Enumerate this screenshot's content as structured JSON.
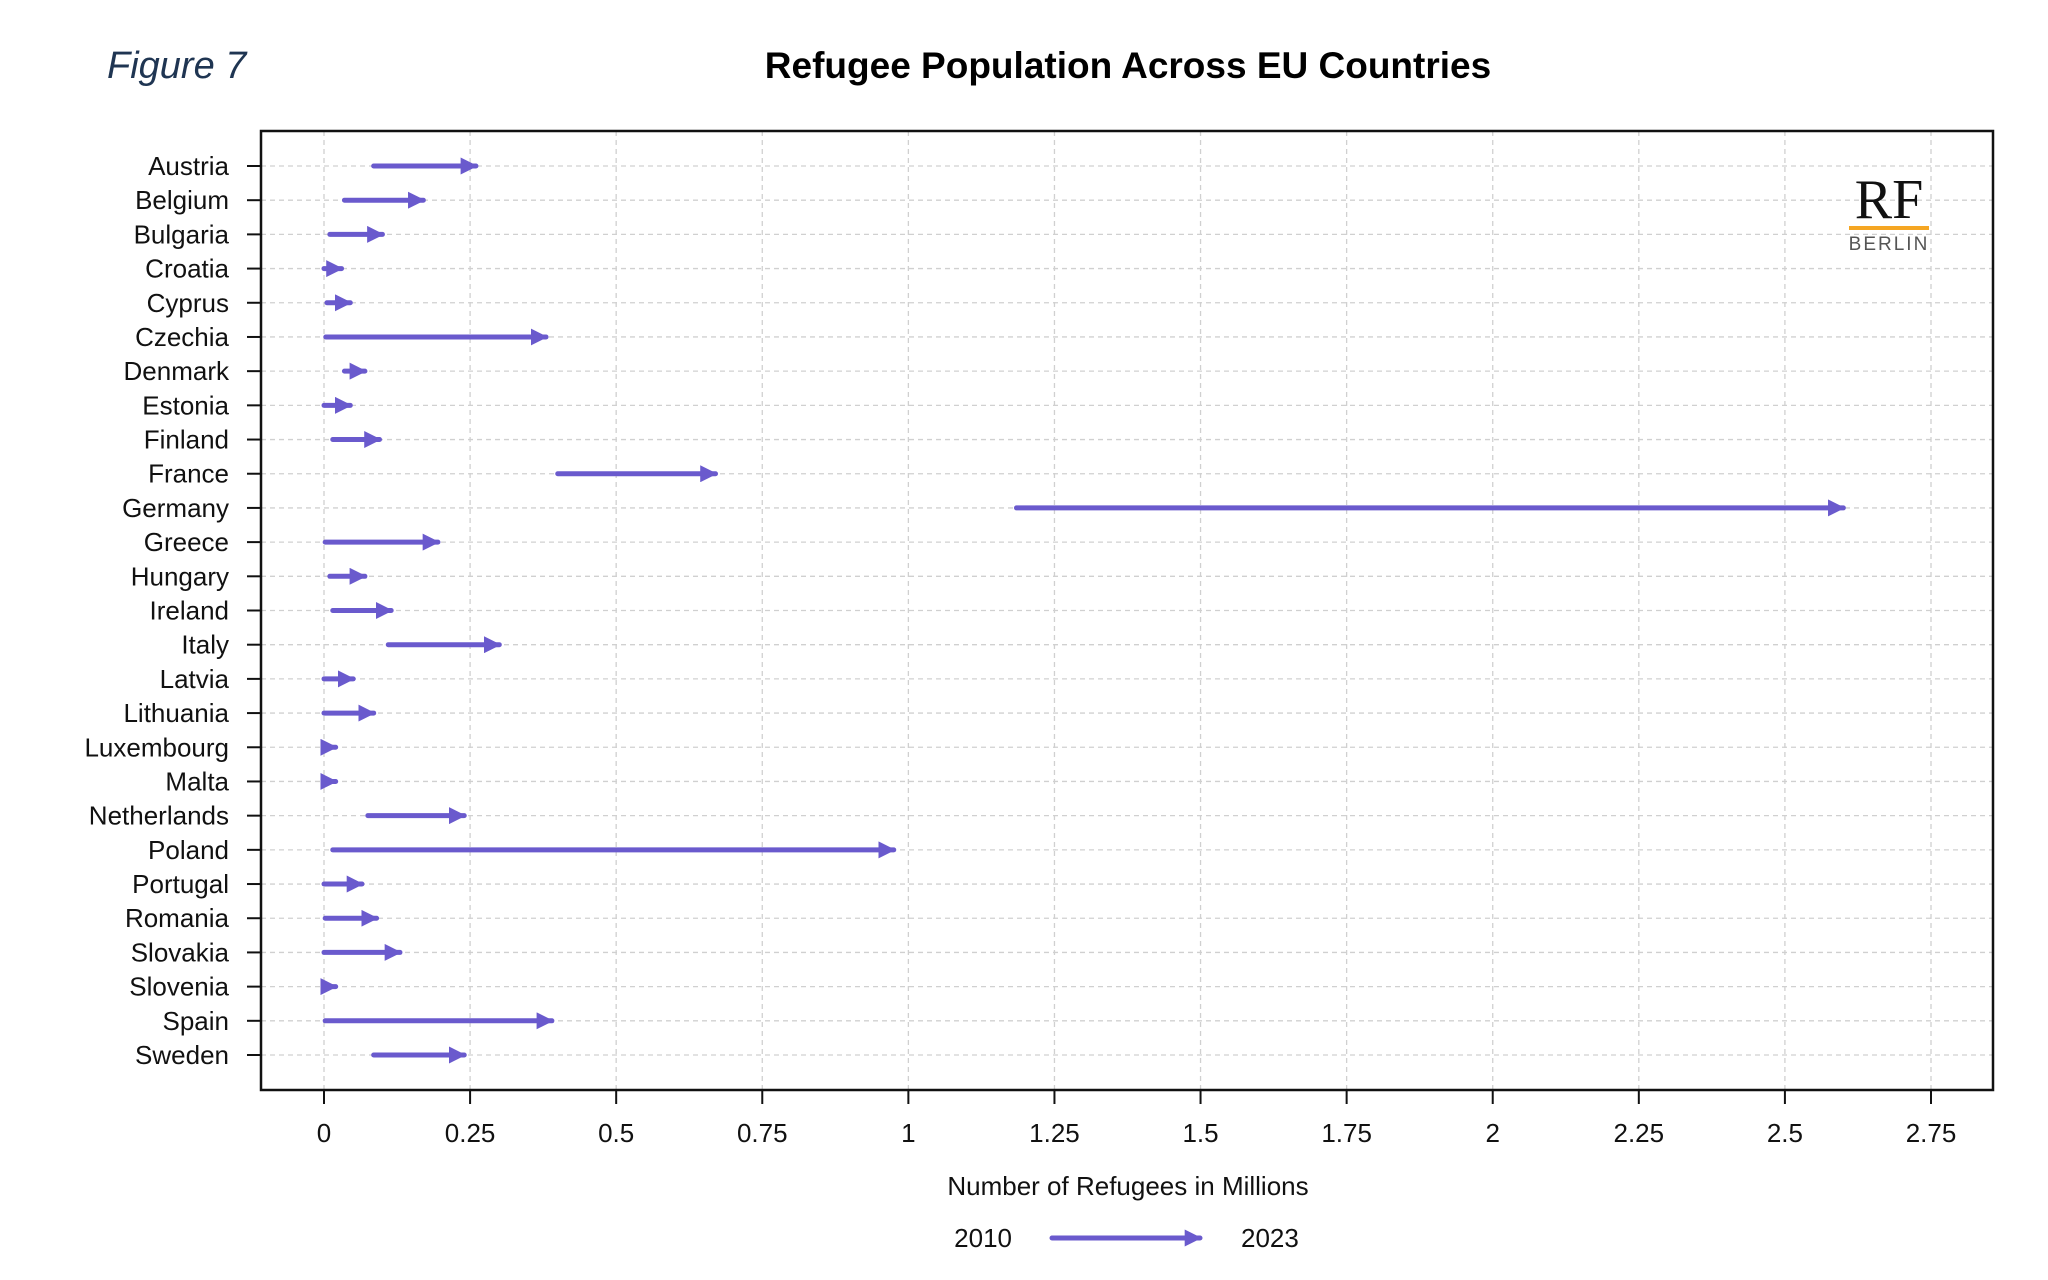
{
  "figure_label": "Figure 7",
  "logo": {
    "text": "RF",
    "subtext": "BERLIN",
    "accent_color": "#f5a623"
  },
  "colors": {
    "arrow": "#6a5acd",
    "grid": "#d0d0d0",
    "axis": "#111111"
  },
  "chart_data": {
    "type": "arrow",
    "title": "Refugee Population Across EU Countries",
    "xlabel": "Number of Refugees in Millions",
    "ylabel": "",
    "xlim": [
      -0.11,
      2.86
    ],
    "x_ticks": [
      0,
      0.25,
      0.5,
      0.75,
      1,
      1.25,
      1.5,
      1.75,
      2,
      2.25,
      2.5,
      2.75
    ],
    "x_tick_labels": [
      "0",
      "0.25",
      "0.5",
      "0.75",
      "1",
      "1.25",
      "1.5",
      "1.75",
      "2",
      "2.25",
      "2.5",
      "2.75"
    ],
    "grid": true,
    "legend": {
      "start_label": "2010",
      "end_label": "2023",
      "position": "bottom"
    },
    "categories": [
      "Austria",
      "Belgium",
      "Bulgaria",
      "Croatia",
      "Cyprus",
      "Czechia",
      "Denmark",
      "Estonia",
      "Finland",
      "France",
      "Germany",
      "Greece",
      "Hungary",
      "Ireland",
      "Italy",
      "Latvia",
      "Lithuania",
      "Luxembourg",
      "Malta",
      "Netherlands",
      "Poland",
      "Portugal",
      "Romania",
      "Slovakia",
      "Slovenia",
      "Spain",
      "Sweden"
    ],
    "series": [
      {
        "name": "2010",
        "values": [
          0.085,
          0.035,
          0.01,
          0.0,
          0.005,
          0.003,
          0.035,
          0.0,
          0.015,
          0.4,
          1.185,
          0.002,
          0.01,
          0.015,
          0.11,
          0.0,
          0.0,
          0.0,
          0.0,
          0.075,
          0.015,
          0.0,
          0.002,
          0.0,
          0.0,
          0.002,
          0.085
        ]
      },
      {
        "name": "2023",
        "values": [
          0.26,
          0.17,
          0.1,
          0.03,
          0.045,
          0.38,
          0.07,
          0.045,
          0.095,
          0.67,
          2.6,
          0.195,
          0.07,
          0.115,
          0.3,
          0.05,
          0.085,
          0.02,
          0.02,
          0.24,
          0.975,
          0.065,
          0.09,
          0.13,
          0.02,
          0.39,
          0.24
        ]
      }
    ]
  }
}
